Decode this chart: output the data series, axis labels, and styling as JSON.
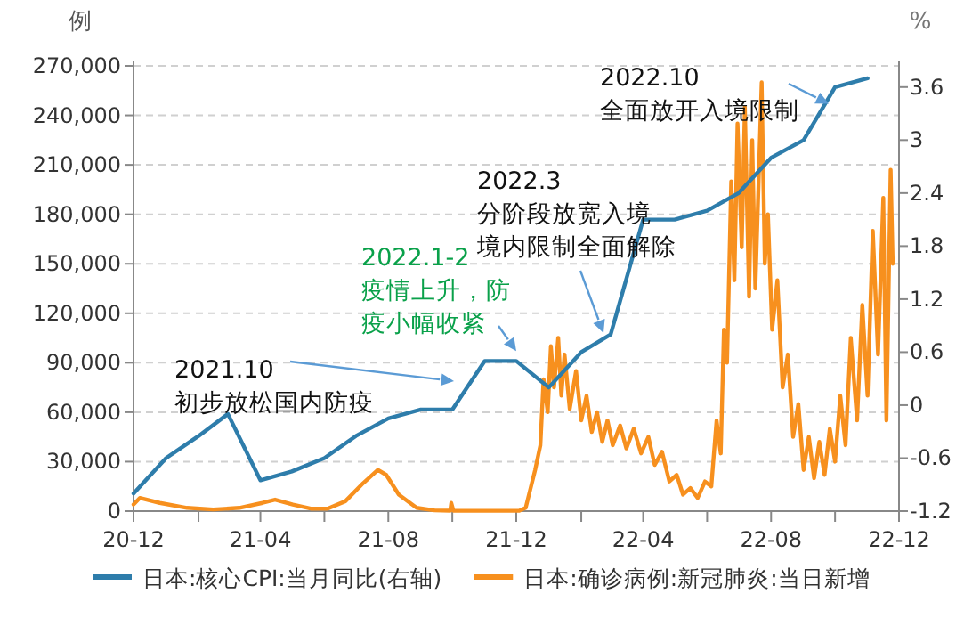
{
  "chart_data": {
    "type": "line",
    "ylabel": "例",
    "y2label": "%",
    "xlim": [
      "2020-12-01",
      "2022-12-01"
    ],
    "xticks": [
      {
        "value": "2020-12-01",
        "label": "20-12"
      },
      {
        "value": "2021-02-01",
        "label": null
      },
      {
        "value": "2021-04-01",
        "label": "21-04"
      },
      {
        "value": "2021-06-01",
        "label": null
      },
      {
        "value": "2021-08-01",
        "label": "21-08"
      },
      {
        "value": "2021-10-01",
        "label": null
      },
      {
        "value": "2021-12-01",
        "label": "21-12"
      },
      {
        "value": "2022-02-01",
        "label": null
      },
      {
        "value": "2022-04-01",
        "label": "22-04"
      },
      {
        "value": "2022-06-01",
        "label": null
      },
      {
        "value": "2022-08-01",
        "label": "22-08"
      },
      {
        "value": "2022-10-01",
        "label": null
      },
      {
        "value": "2022-12-01",
        "label": "22-12"
      }
    ],
    "ylim": [
      0,
      270000
    ],
    "yticks": [
      {
        "value": 0,
        "label": "0"
      },
      {
        "value": 30000,
        "label": "30,000"
      },
      {
        "value": 60000,
        "label": "60,000"
      },
      {
        "value": 90000,
        "label": "90,000"
      },
      {
        "value": 120000,
        "label": "120,000"
      },
      {
        "value": 150000,
        "label": "150,000"
      },
      {
        "value": 180000,
        "label": "180,000"
      },
      {
        "value": 210000,
        "label": "210,000"
      },
      {
        "value": 240000,
        "label": "240,000"
      },
      {
        "value": 270000,
        "label": "270,000"
      }
    ],
    "y2lim": [
      -1.2,
      3.84
    ],
    "y2ticks": [
      -1.2,
      -0.6,
      0,
      0.6,
      1.2,
      1.8,
      2.4,
      3,
      3.6
    ],
    "grid": "y",
    "legend": "bottom",
    "marker": "none",
    "line_style": "solid",
    "series": [
      {
        "name": "日本:核心CPI:当月同比(右轴)",
        "color": "#2e7dab",
        "axis": "y2",
        "x": [
          "2020-12-01",
          "2021-01-01",
          "2021-02-01",
          "2021-03-01",
          "2021-04-01",
          "2021-05-01",
          "2021-06-01",
          "2021-07-01",
          "2021-08-01",
          "2021-09-01",
          "2021-10-01",
          "2021-11-01",
          "2021-12-01",
          "2022-01-01",
          "2022-02-01",
          "2022-03-01",
          "2022-04-01",
          "2022-05-01",
          "2022-06-01",
          "2022-07-01",
          "2022-08-01",
          "2022-09-01",
          "2022-10-01",
          "2022-11-01"
        ],
        "values": [
          -1.0,
          -0.6,
          -0.35,
          -0.1,
          -0.85,
          -0.75,
          -0.6,
          -0.35,
          -0.15,
          -0.05,
          -0.05,
          0.5,
          0.5,
          0.2,
          0.6,
          0.8,
          2.1,
          2.1,
          2.2,
          2.4,
          2.8,
          3.0,
          3.6,
          3.7
        ]
      },
      {
        "name": "日本:确诊病例:新冠肺炎:当日新增",
        "color": "#f7901e",
        "x": [
          "2020-12-01",
          "2020-12-07",
          "2020-12-26",
          "2021-01-21",
          "2021-02-15",
          "2021-03-12",
          "2021-04-03",
          "2021-04-15",
          "2021-05-02",
          "2021-05-19",
          "2021-06-04",
          "2021-06-21",
          "2021-07-08",
          "2021-07-22",
          "2021-07-30",
          "2021-08-11",
          "2021-08-28",
          "2021-09-14",
          "2021-09-29",
          "2021-09-30",
          "2021-10-02",
          "2021-11-12",
          "2021-12-04",
          "2021-12-10",
          "2021-12-19",
          "2021-12-24",
          "2021-12-27",
          "2021-12-31",
          "2022-01-03",
          "2022-01-06",
          "2022-01-10",
          "2022-01-13",
          "2022-01-16",
          "2022-01-21",
          "2022-01-27",
          "2022-02-01",
          "2022-02-06",
          "2022-02-11",
          "2022-02-16",
          "2022-02-21",
          "2022-02-26",
          "2022-03-03",
          "2022-03-10",
          "2022-03-16",
          "2022-03-23",
          "2022-03-30",
          "2022-04-06",
          "2022-04-12",
          "2022-04-19",
          "2022-04-26",
          "2022-05-03",
          "2022-05-09",
          "2022-05-16",
          "2022-05-23",
          "2022-05-30",
          "2022-06-05",
          "2022-06-10",
          "2022-06-14",
          "2022-06-17",
          "2022-06-20",
          "2022-06-24",
          "2022-06-27",
          "2022-06-30",
          "2022-07-04",
          "2022-07-07",
          "2022-07-11",
          "2022-07-14",
          "2022-07-17",
          "2022-07-23",
          "2022-07-26",
          "2022-07-29",
          "2022-08-02",
          "2022-08-07",
          "2022-08-12",
          "2022-08-17",
          "2022-08-22",
          "2022-08-27",
          "2022-09-01",
          "2022-09-06",
          "2022-09-11",
          "2022-09-16",
          "2022-09-21",
          "2022-09-26",
          "2022-10-01",
          "2022-10-06",
          "2022-10-11",
          "2022-10-16",
          "2022-10-22",
          "2022-10-27",
          "2022-11-01",
          "2022-11-06",
          "2022-11-11",
          "2022-11-16",
          "2022-11-19",
          "2022-11-23",
          "2022-11-25"
        ],
        "values": [
          4000,
          8000,
          5000,
          2000,
          1000,
          2000,
          5000,
          7000,
          4000,
          1500,
          1500,
          6000,
          17000,
          25000,
          22000,
          10000,
          2000,
          500,
          300,
          5000,
          300,
          200,
          300,
          2000,
          25000,
          40000,
          80000,
          60000,
          100000,
          75000,
          105000,
          70000,
          95000,
          62000,
          85000,
          55000,
          70000,
          48000,
          60000,
          42000,
          55000,
          40000,
          52000,
          38000,
          50000,
          35000,
          45000,
          28000,
          36000,
          18000,
          22000,
          10000,
          14000,
          8000,
          18000,
          15000,
          55000,
          35000,
          110000,
          90000,
          200000,
          140000,
          235000,
          160000,
          245000,
          130000,
          225000,
          135000,
          260000,
          150000,
          180000,
          110000,
          140000,
          75000,
          95000,
          45000,
          65000,
          25000,
          45000,
          20000,
          42000,
          22000,
          50000,
          30000,
          70000,
          40000,
          105000,
          55000,
          125000,
          70000,
          170000,
          95000,
          190000,
          55000,
          207000,
          150000
        ]
      }
    ],
    "annotations": [
      "2021.10\n初步放松国内防疫",
      {
        "text": "2022.1-2\n疫情上升，防疫小幅收紧",
        "x": "2021-12-01",
        "y": 97000
      },
      "2022.3\n分阶段放宽入境境内限制全面解除",
      {
        "text": "2022.10\n全面放开入境限制",
        "x": "2022-09-25",
        "y": 247000
      }
    ]
  }
}
